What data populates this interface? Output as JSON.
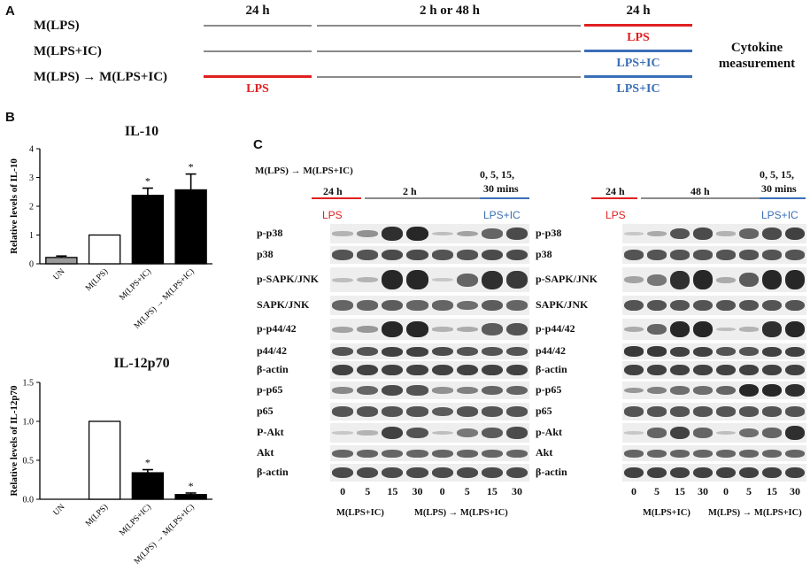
{
  "panels": {
    "a": "A",
    "b": "B",
    "c": "C"
  },
  "panel_a": {
    "rows": [
      "M(LPS)",
      "M(LPS+IC)",
      "M(LPS) → M(LPS+IC)"
    ],
    "head_first": "24 h",
    "head_middle": "2 h or 48 h",
    "head_last": "24 h",
    "treat_lps_first": "LPS",
    "treat_row1": "LPS",
    "treat_row2": "LPS+IC",
    "treat_row3": "LPS+IC",
    "readout_line1": "Cytokine",
    "readout_line2": "measurement",
    "colors": {
      "lps": "#e02020",
      "lps_ic": "#3a6fb7",
      "gap": "#8a8a8a"
    }
  },
  "chart_data": [
    {
      "type": "bar",
      "title": "IL-10",
      "ylabel": "Relative levels of IL-10",
      "categories": [
        "UN",
        "M(LPS)",
        "M(LPS+IC)",
        "M(LPS) → M(LPS+IC)"
      ],
      "values": [
        0.22,
        1.0,
        2.38,
        2.57
      ],
      "errors": [
        0.05,
        0.0,
        0.25,
        0.55
      ],
      "fills": [
        "gray",
        "white",
        "black",
        "black"
      ],
      "significance": [
        "",
        "",
        "*",
        "*"
      ],
      "ylim": [
        0,
        4
      ],
      "yticks": [
        0,
        1,
        2,
        3,
        4
      ]
    },
    {
      "type": "bar",
      "title": "IL-12p70",
      "ylabel": "Relative levels of IL-12p70",
      "categories": [
        "UN",
        "M(LPS)",
        "M(LPS+IC)",
        "M(LPS) → M(LPS+IC)"
      ],
      "values": [
        0.0,
        1.0,
        0.34,
        0.06
      ],
      "errors": [
        0.0,
        0.0,
        0.04,
        0.02
      ],
      "fills": [
        "gray",
        "white",
        "black",
        "black"
      ],
      "significance": [
        "",
        "",
        "*",
        "*"
      ],
      "ylim": [
        0,
        1.5
      ],
      "yticks": [
        0.0,
        0.5,
        1.0,
        1.5
      ],
      "ytick_labels": [
        "0.0",
        "0.5",
        "1.0",
        "1.5"
      ]
    }
  ],
  "panel_c": {
    "protocol_label": "M(LPS) → M(LPS+IC)",
    "left": {
      "first_period": "24 h",
      "second_period": "2 h",
      "timepoints": [
        "0, 5, 15,",
        "30 mins"
      ],
      "lps": "LPS",
      "lps_ic": "LPS+IC",
      "rows": [
        "p-p38",
        "p38",
        "p-SAPK/JNK",
        "SAPK/JNK",
        "p-p44/42",
        "p44/42",
        "β-actin",
        "p-p65",
        "p65",
        "P-Akt",
        "Akt",
        "β-actin"
      ],
      "lanes": [
        "0",
        "5",
        "15",
        "30",
        "0",
        "5",
        "15",
        "30"
      ],
      "group1": "M(LPS+IC)",
      "group2": "M(LPS) → M(LPS+IC)"
    },
    "right": {
      "first_period": "24 h",
      "second_period": "48 h",
      "timepoints": [
        "0, 5, 15,",
        "30 mins"
      ],
      "lps": "LPS",
      "lps_ic": "LPS+IC",
      "rows": [
        "p-p38",
        "p38",
        "p-SAPK/JNK",
        "SAPK/JNK",
        "p-p44/42",
        "p44/42",
        "β-actin",
        "p-p65",
        "p65",
        "p-Akt",
        "Akt",
        "β-actin"
      ],
      "lanes": [
        "0",
        "5",
        "15",
        "30",
        "0",
        "5",
        "15",
        "30"
      ],
      "group1": "M(LPS+IC)",
      "group2": "M(LPS) → M(LPS+IC)"
    }
  }
}
